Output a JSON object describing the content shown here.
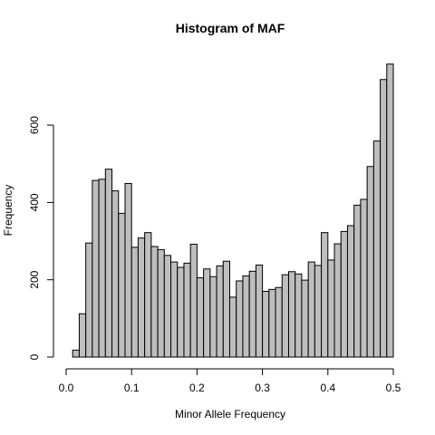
{
  "chart_data": {
    "type": "bar",
    "title": "Histogram of MAF",
    "xlabel": "Minor Allele Frequency",
    "ylabel": "Frequency",
    "xlim": [
      0,
      0.5
    ],
    "ylim": [
      0,
      760
    ],
    "bin_width": 0.01,
    "x_ticks": [
      0,
      0.1,
      0.2,
      0.3,
      0.4,
      0.5
    ],
    "x_tick_labels": [
      "0.0",
      "0.1",
      "0.2",
      "0.3",
      "0.4",
      "0.5"
    ],
    "y_ticks": [
      0,
      200,
      400,
      600
    ],
    "y_tick_labels": [
      "0",
      "200",
      "400",
      "600"
    ],
    "grid": false,
    "bar_color": "#bebebe",
    "edge_color": "#000000",
    "bins": [
      0.0,
      0.01,
      0.02,
      0.03,
      0.04,
      0.05,
      0.06,
      0.07,
      0.08,
      0.09,
      0.1,
      0.11,
      0.12,
      0.13,
      0.14,
      0.15,
      0.16,
      0.17,
      0.18,
      0.19,
      0.2,
      0.21,
      0.22,
      0.23,
      0.24,
      0.25,
      0.26,
      0.27,
      0.28,
      0.29,
      0.3,
      0.31,
      0.32,
      0.33,
      0.34,
      0.35,
      0.36,
      0.37,
      0.38,
      0.39,
      0.4,
      0.41,
      0.42,
      0.43,
      0.44,
      0.45,
      0.46,
      0.47,
      0.48,
      0.49
    ],
    "values": [
      0,
      18,
      112,
      295,
      457,
      460,
      486,
      430,
      372,
      449,
      284,
      308,
      322,
      286,
      278,
      263,
      246,
      232,
      243,
      292,
      205,
      228,
      208,
      236,
      248,
      155,
      197,
      210,
      222,
      238,
      170,
      175,
      180,
      213,
      221,
      215,
      199,
      246,
      237,
      322,
      251,
      293,
      325,
      340,
      393,
      408,
      493,
      559,
      718,
      758
    ]
  }
}
